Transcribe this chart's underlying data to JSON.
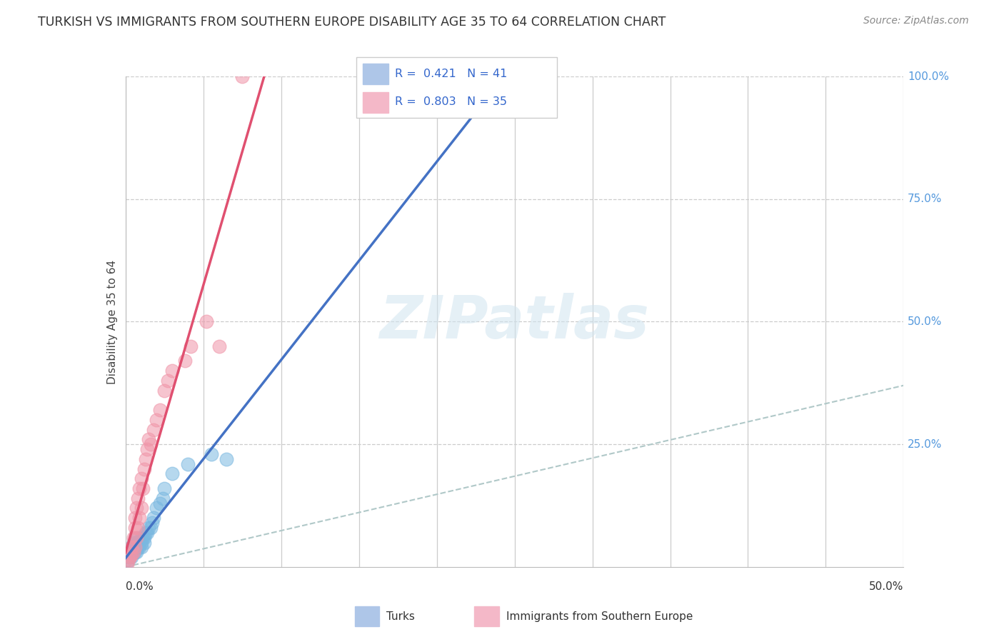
{
  "title": "TURKISH VS IMMIGRANTS FROM SOUTHERN EUROPE DISABILITY AGE 35 TO 64 CORRELATION CHART",
  "source": "Source: ZipAtlas.com",
  "ylabel_label": "Disability Age 35 to 64",
  "xmin": 0.0,
  "xmax": 0.5,
  "ymin": 0.0,
  "ymax": 1.0,
  "legend1_label": "R =  0.421   N = 41",
  "legend2_label": "R =  0.803   N = 35",
  "legend1_color": "#aec6e8",
  "legend2_color": "#f4b8c8",
  "watermark": "ZIPatlas",
  "turks_color": "#7ab8e0",
  "southern_color": "#f095a8",
  "turks_line_color": "#4472c4",
  "southern_line_color": "#e05070",
  "dashed_line_color": "#aaaaaa",
  "turks_x": [
    0.001,
    0.002,
    0.003,
    0.003,
    0.004,
    0.004,
    0.004,
    0.005,
    0.005,
    0.005,
    0.006,
    0.006,
    0.006,
    0.007,
    0.007,
    0.007,
    0.008,
    0.008,
    0.008,
    0.009,
    0.009,
    0.01,
    0.01,
    0.01,
    0.011,
    0.012,
    0.012,
    0.013,
    0.014,
    0.015,
    0.016,
    0.017,
    0.018,
    0.02,
    0.022,
    0.024,
    0.025,
    0.03,
    0.04,
    0.055,
    0.065
  ],
  "turks_y": [
    0.01,
    0.02,
    0.02,
    0.03,
    0.02,
    0.03,
    0.04,
    0.03,
    0.04,
    0.05,
    0.03,
    0.04,
    0.05,
    0.03,
    0.04,
    0.05,
    0.04,
    0.05,
    0.06,
    0.04,
    0.05,
    0.04,
    0.05,
    0.06,
    0.06,
    0.05,
    0.06,
    0.07,
    0.07,
    0.08,
    0.08,
    0.09,
    0.1,
    0.12,
    0.13,
    0.14,
    0.16,
    0.19,
    0.21,
    0.23,
    0.22
  ],
  "south_x": [
    0.001,
    0.002,
    0.003,
    0.004,
    0.004,
    0.005,
    0.005,
    0.006,
    0.006,
    0.006,
    0.007,
    0.007,
    0.008,
    0.008,
    0.009,
    0.009,
    0.01,
    0.01,
    0.011,
    0.012,
    0.013,
    0.014,
    0.015,
    0.016,
    0.018,
    0.02,
    0.022,
    0.025,
    0.027,
    0.03,
    0.038,
    0.042,
    0.052,
    0.06,
    0.075
  ],
  "south_y": [
    0.005,
    0.015,
    0.02,
    0.025,
    0.04,
    0.03,
    0.06,
    0.04,
    0.08,
    0.1,
    0.06,
    0.12,
    0.08,
    0.14,
    0.1,
    0.16,
    0.12,
    0.18,
    0.16,
    0.2,
    0.22,
    0.24,
    0.26,
    0.25,
    0.28,
    0.3,
    0.32,
    0.36,
    0.38,
    0.4,
    0.42,
    0.45,
    0.5,
    0.45,
    1.0
  ]
}
